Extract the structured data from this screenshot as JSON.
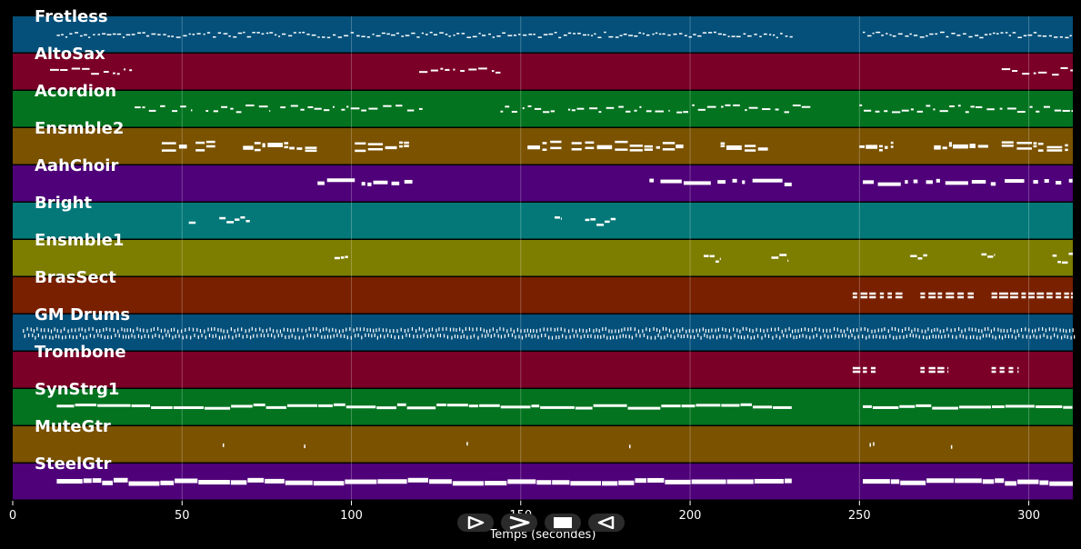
{
  "chart_data": {
    "type": "piano-roll",
    "xlabel": "Temps (secondes)",
    "xlim": [
      0,
      313
    ],
    "xticks": [
      0,
      50,
      100,
      150,
      200,
      250,
      300
    ],
    "grid": true,
    "tracks": [
      {
        "name": "Fretless",
        "color": "#04507a",
        "segments": [
          [
            13,
            230
          ],
          [
            251,
            313
          ]
        ],
        "style": "dense-small"
      },
      {
        "name": "AltoSax",
        "color": "#7a0028",
        "segments": [
          [
            11,
            36
          ],
          [
            120,
            144
          ],
          [
            292,
            313
          ]
        ],
        "style": "phrases"
      },
      {
        "name": "Acordion",
        "color": "#03731f",
        "segments": [
          [
            36,
            45
          ],
          [
            47,
            53
          ],
          [
            57,
            76
          ],
          [
            79,
            95
          ],
          [
            97,
            121
          ],
          [
            144,
            160
          ],
          [
            164,
            194
          ],
          [
            196,
            236
          ],
          [
            250,
            313
          ]
        ],
        "style": "sparse-phrases"
      },
      {
        "name": "Ensmble2",
        "color": "#7a5200",
        "segments": [
          [
            44,
            52
          ],
          [
            54,
            60
          ],
          [
            68,
            90
          ],
          [
            101,
            117
          ],
          [
            152,
            162
          ],
          [
            165,
            198
          ],
          [
            209,
            223
          ],
          [
            250,
            260
          ],
          [
            272,
            288
          ],
          [
            292,
            312
          ]
        ],
        "style": "chords"
      },
      {
        "name": "AahChoir",
        "color": "#4f0179",
        "segments": [
          [
            90,
            101
          ],
          [
            103,
            118
          ],
          [
            188,
            230
          ],
          [
            251,
            313
          ]
        ],
        "style": "long-notes"
      },
      {
        "name": "Bright",
        "color": "#047878",
        "segments": [
          [
            52,
            54
          ],
          [
            61,
            70
          ],
          [
            160,
            162
          ],
          [
            169,
            178
          ]
        ],
        "style": "short-notes"
      },
      {
        "name": "Ensmble1",
        "color": "#7d7d00",
        "segments": [
          [
            95,
            99
          ],
          [
            204,
            209
          ],
          [
            224,
            229
          ],
          [
            265,
            270
          ],
          [
            286,
            290
          ],
          [
            307,
            313
          ]
        ],
        "style": "short-notes"
      },
      {
        "name": "BrasSect",
        "color": "#782000",
        "segments": [
          [
            248,
            263
          ],
          [
            268,
            284
          ],
          [
            289,
            313
          ]
        ],
        "style": "stabs"
      },
      {
        "name": "GM Drums",
        "color": "#04507a",
        "segments": [
          [
            3,
            313
          ]
        ],
        "style": "drums"
      },
      {
        "name": "Trombone",
        "color": "#7a0028",
        "segments": [
          [
            248,
            256
          ],
          [
            268,
            276
          ],
          [
            289,
            297
          ]
        ],
        "style": "stabs"
      },
      {
        "name": "SynStrg1",
        "color": "#03731f",
        "segments": [
          [
            13,
            230
          ],
          [
            251,
            313
          ]
        ],
        "style": "sustained"
      },
      {
        "name": "MuteGtr",
        "color": "#7a5200",
        "notes": [
          62,
          86,
          134,
          182,
          253,
          254,
          277
        ],
        "style": "ticks"
      },
      {
        "name": "SteelGtr",
        "color": "#4f0179",
        "segments": [
          [
            13,
            230
          ],
          [
            251,
            313
          ]
        ],
        "style": "sustained-thick"
      }
    ]
  },
  "transport": {
    "buttons": [
      {
        "name": "play-button",
        "icon": "play-icon"
      },
      {
        "name": "forward-button",
        "icon": "forward-icon"
      },
      {
        "name": "stop-button",
        "icon": "stop-icon"
      },
      {
        "name": "rewind-button",
        "icon": "rewind-icon"
      }
    ]
  }
}
